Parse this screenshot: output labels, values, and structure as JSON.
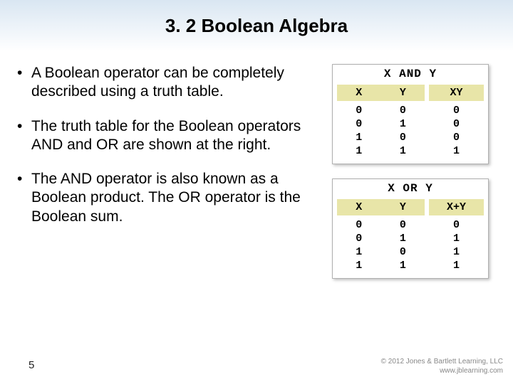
{
  "title": "3. 2 Boolean Algebra",
  "bullets": [
    "A Boolean operator can be completely described using a truth table.",
    "The truth table for the Boolean operators AND and OR are shown at the right.",
    "The AND operator is also known as a Boolean product.  The OR operator is the Boolean sum."
  ],
  "tables": {
    "and": {
      "title": "X AND Y",
      "left_headers": [
        "X",
        "Y"
      ],
      "right_header": "XY",
      "rows": [
        {
          "x": "0",
          "y": "0",
          "r": "0"
        },
        {
          "x": "0",
          "y": "1",
          "r": "0"
        },
        {
          "x": "1",
          "y": "0",
          "r": "0"
        },
        {
          "x": "1",
          "y": "1",
          "r": "1"
        }
      ]
    },
    "or": {
      "title": "X OR Y",
      "left_headers": [
        "X",
        "Y"
      ],
      "right_header": "X+Y",
      "rows": [
        {
          "x": "0",
          "y": "0",
          "r": "0"
        },
        {
          "x": "0",
          "y": "1",
          "r": "1"
        },
        {
          "x": "1",
          "y": "0",
          "r": "1"
        },
        {
          "x": "1",
          "y": "1",
          "r": "1"
        }
      ]
    }
  },
  "page_number": "5",
  "copyright": {
    "line1": "© 2012 Jones & Bartlett Learning, LLC",
    "line2": "www.jblearning.com"
  },
  "style": {
    "title_fontsize": 26,
    "bullet_fontsize": 21,
    "table_header_bg": "#e8e5a8",
    "table_border": "#b0b0b0",
    "gradient_top": "#d9e6f2",
    "gradient_bottom": "#ffffff",
    "mono_font": "Courier New"
  }
}
